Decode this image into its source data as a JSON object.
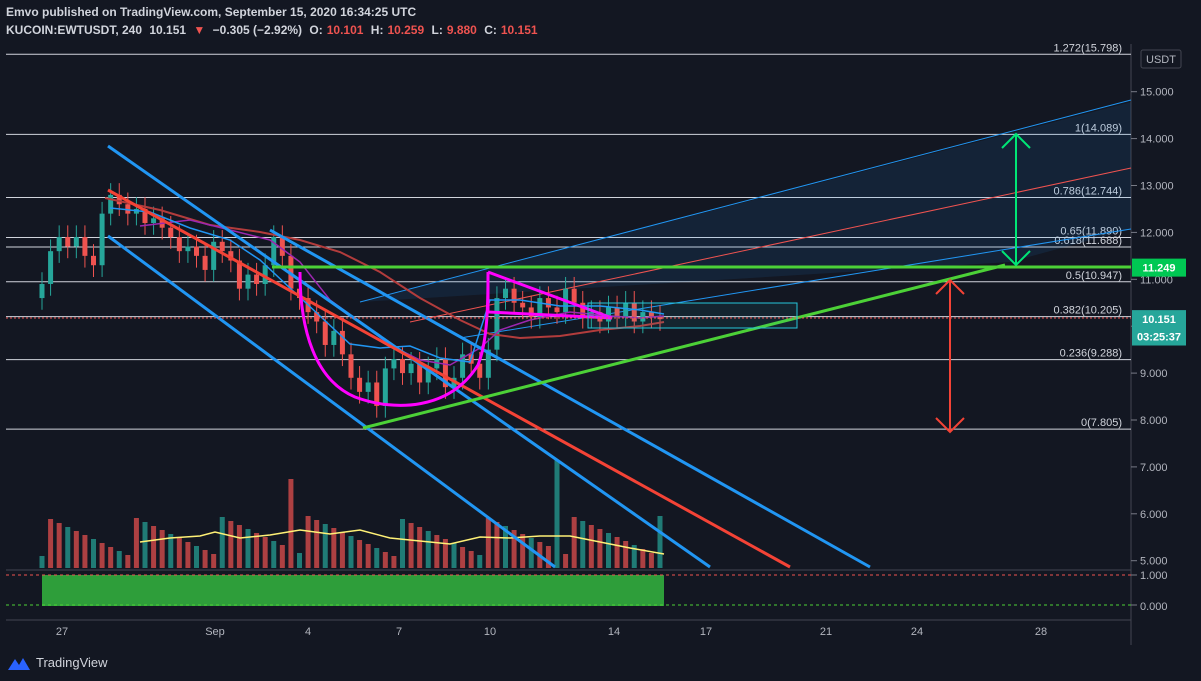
{
  "header": {
    "published": "Emvo published on TradingView.com, September 15, 2020 16:34:25 UTC",
    "symbol": "KUCOIN:EWTUSDT, 240",
    "price": "10.151",
    "change": "−0.305 (−2.92%)",
    "o_label": "O:",
    "o_value": "10.101",
    "h_label": "H:",
    "h_value": "10.259",
    "l_label": "L:",
    "l_value": "9.880",
    "c_label": "C:",
    "c_value": "10.151"
  },
  "colors": {
    "bg": "#131722",
    "up": "#26a69a",
    "down": "#ef5350",
    "channel": "#2196f3",
    "trend_red": "#f44336",
    "support": "#4cd137",
    "magenta": "#ff00ff",
    "resistance": "#00e676",
    "box": "#26c6da"
  },
  "chart_data": {
    "type": "candlestick",
    "currency": "USDT",
    "y_ticks": [
      "15.000",
      "14.000",
      "13.000",
      "12.000",
      "11.000",
      "10.000",
      "9.000",
      "8.000",
      "7.000",
      "6.000",
      "5.000"
    ],
    "x_ticks": [
      "27",
      "Sep",
      "4",
      "7",
      "10",
      "14",
      "17",
      "21",
      "24",
      "28"
    ],
    "fib_levels": [
      {
        "label": "1.272(15.798)",
        "value": 15.798
      },
      {
        "label": "1(14.089)",
        "value": 14.089
      },
      {
        "label": "0.786(12.744)",
        "value": 12.744
      },
      {
        "label": "0.65(11.890)",
        "value": 11.89
      },
      {
        "label": "0.618(11.688)",
        "value": 11.688
      },
      {
        "label": "0.5(10.947)",
        "value": 10.947
      },
      {
        "label": "0.382(10.205)",
        "value": 10.205
      },
      {
        "label": "0.236(9.288)",
        "value": 9.288
      },
      {
        "label": "0(7.805)",
        "value": 7.805
      }
    ],
    "price_tags": [
      {
        "text": "11.249",
        "value": 11.249,
        "color": "#00c853"
      },
      {
        "text": "10.151",
        "value": 10.151,
        "color": "#26a69a"
      },
      {
        "text": "03:25:37",
        "value": 9.78,
        "color": "#26a69a"
      }
    ],
    "closes": [
      10.9,
      11.6,
      11.9,
      11.7,
      11.9,
      11.5,
      11.3,
      12.4,
      12.8,
      12.6,
      12.4,
      12.5,
      12.2,
      12.3,
      12.1,
      11.9,
      11.6,
      11.7,
      11.5,
      11.2,
      11.8,
      11.6,
      11.4,
      10.8,
      11.1,
      10.9,
      11.3,
      11.9,
      11.5,
      10.8,
      10.6,
      10.3,
      10.1,
      9.6,
      9.9,
      9.4,
      8.9,
      8.6,
      8.8,
      8.3,
      9.1,
      9.3,
      9.0,
      9.2,
      8.8,
      9.1,
      9.3,
      8.7,
      8.9,
      9.4,
      9.2,
      8.9,
      9.5,
      10.6,
      10.8,
      10.5,
      10.4,
      10.2,
      10.6,
      10.4,
      10.3,
      10.8,
      10.5,
      10.2,
      10.3,
      10.1,
      10.4,
      10.2,
      10.5,
      10.1,
      10.3,
      10.2,
      10.15
    ],
    "volume_ticks": [
      "1.000",
      "0.000"
    ]
  },
  "footer": {
    "brand": "TradingView"
  }
}
